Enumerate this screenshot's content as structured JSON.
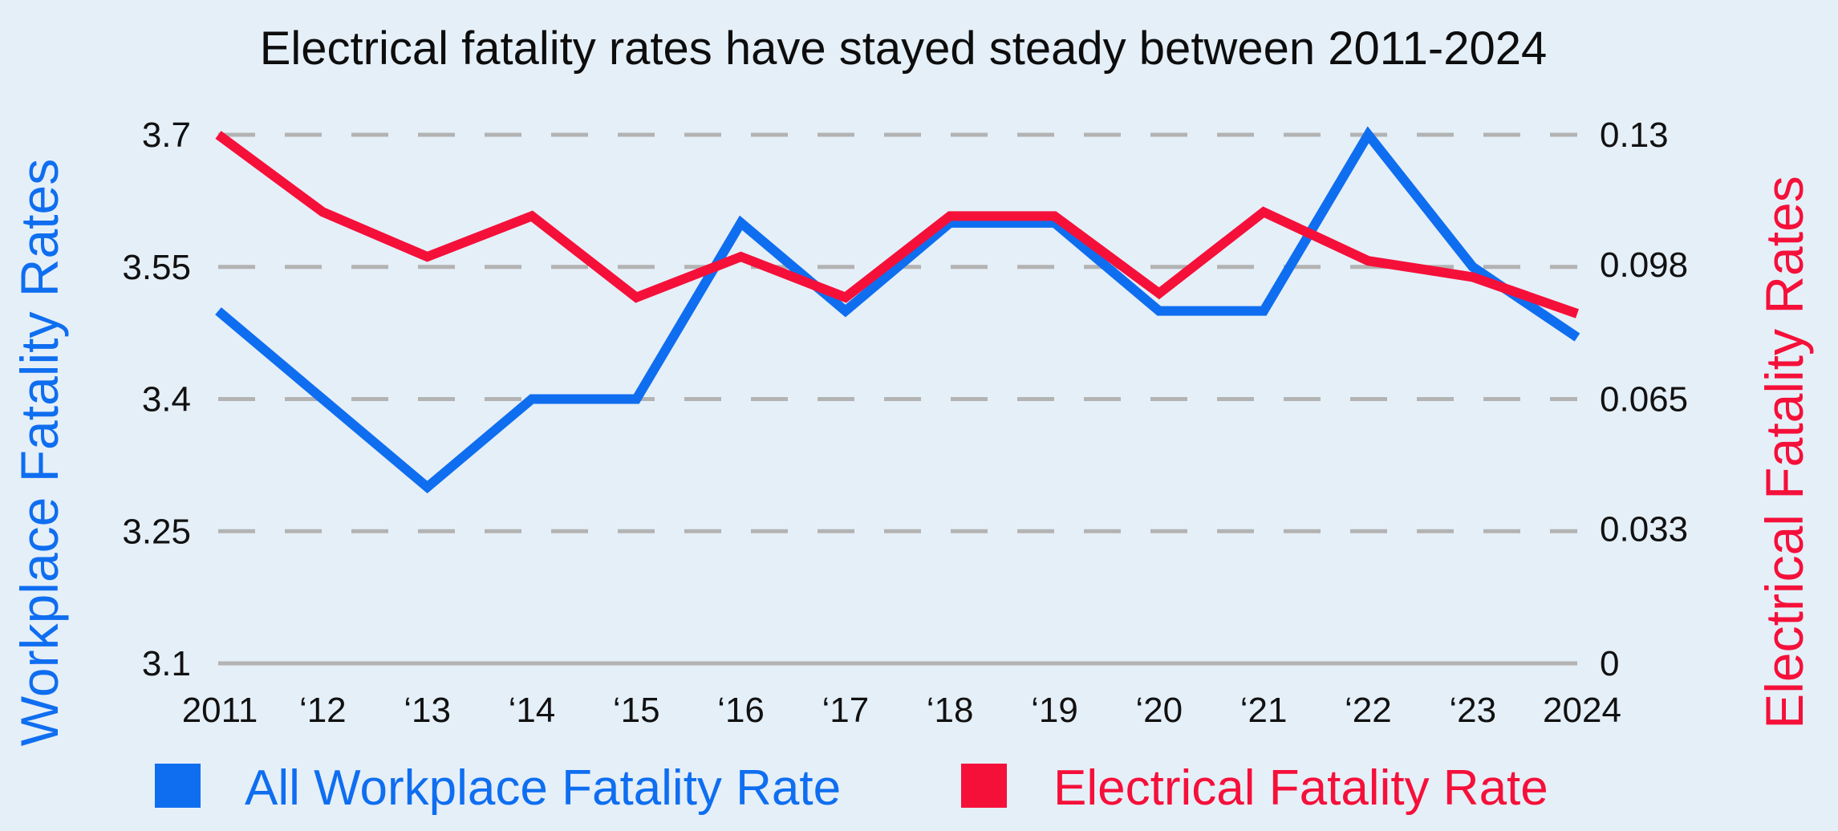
{
  "chart_data": {
    "type": "line",
    "title": "Electrical fatality rates have stayed steady between 2011-2024",
    "categories": [
      "2011",
      "‘12",
      "‘13",
      "‘14",
      "‘15",
      "‘16",
      "‘17",
      "‘18",
      "‘19",
      "‘20",
      "‘21",
      "‘22",
      "‘23",
      "2024"
    ],
    "left_axis": {
      "label": "Workplace Fatality Rates",
      "ylim": [
        3.1,
        3.7
      ],
      "ticks": [
        "3.7",
        "3.55",
        "3.4",
        "3.25",
        "3.1"
      ],
      "tick_values": [
        3.7,
        3.55,
        3.4,
        3.25,
        3.1
      ]
    },
    "right_axis": {
      "label": "Electrical Fatality Rates",
      "ylim": [
        0,
        0.13
      ],
      "ticks": [
        "0.13",
        "0.098",
        "0.065",
        "0.033",
        "0"
      ],
      "tick_values": [
        0.13,
        0.098,
        0.065,
        0.033,
        0
      ]
    },
    "series": [
      {
        "name": "All Workplace Fatality Rate",
        "axis": "left",
        "color": "#0f6ef0",
        "values": [
          3.5,
          3.4,
          3.3,
          3.4,
          3.4,
          3.6,
          3.5,
          3.6,
          3.6,
          3.5,
          3.5,
          3.7,
          3.55,
          3.47
        ]
      },
      {
        "name": "Electrical Fatality Rate",
        "axis": "right",
        "color": "#f5103a",
        "values": [
          0.13,
          0.111,
          0.1,
          0.11,
          0.09,
          0.1,
          0.09,
          0.11,
          0.11,
          0.091,
          0.111,
          0.099,
          0.095,
          0.086
        ]
      }
    ],
    "grid": true,
    "grid_style": "dashed",
    "legend_position": "bottom"
  },
  "colors": {
    "background": "#e5eff8",
    "grid": "#b3b3b3",
    "workplace": "#0f6ef0",
    "electrical": "#f5103a"
  }
}
